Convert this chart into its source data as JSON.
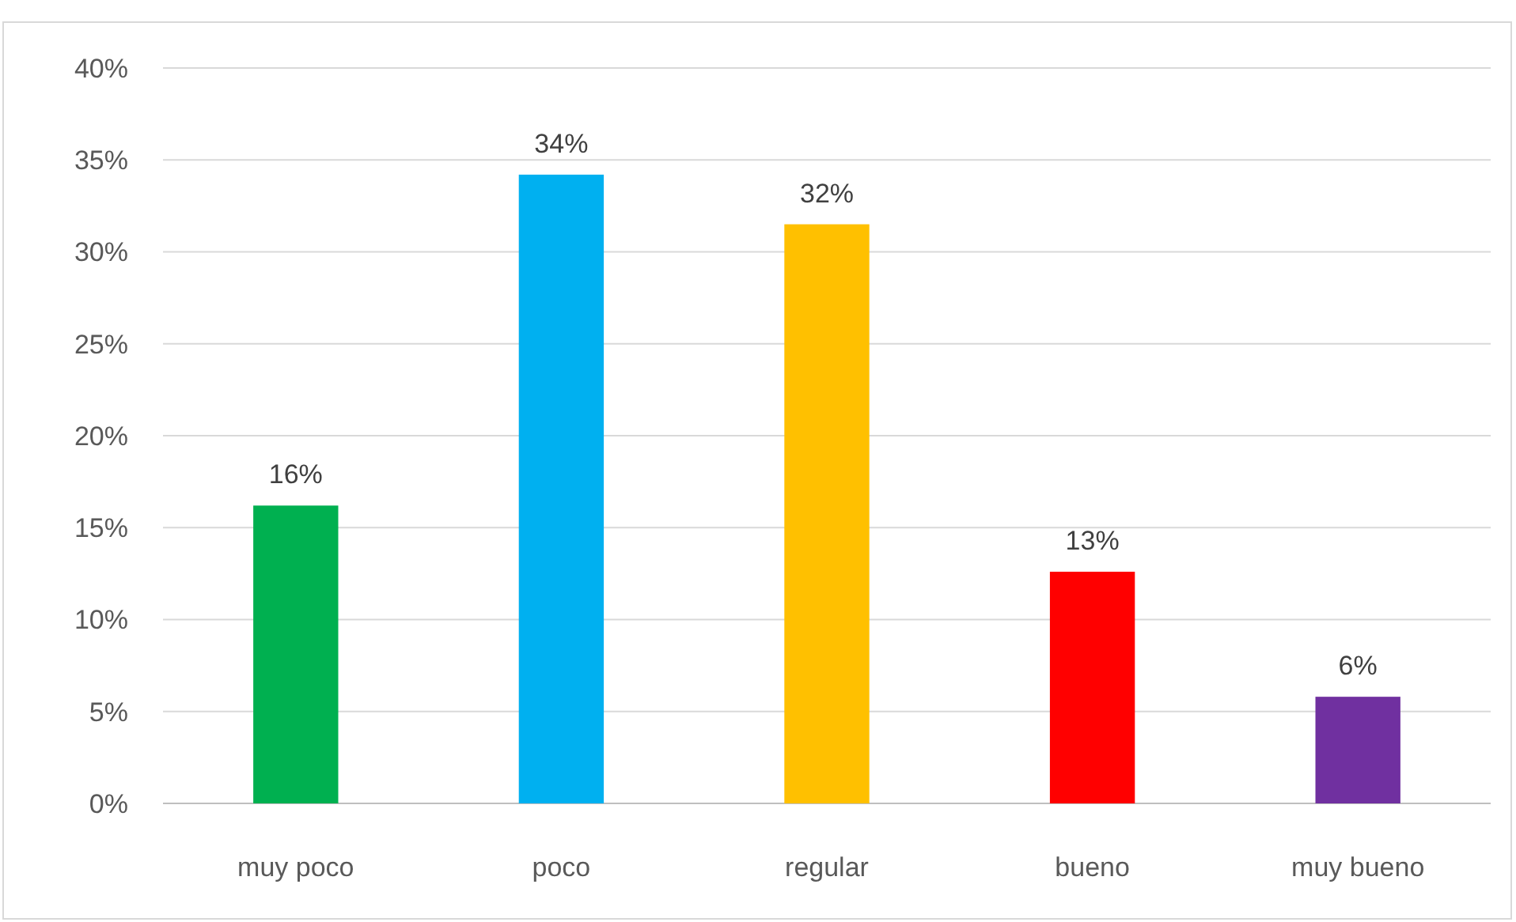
{
  "chart_data": {
    "type": "bar",
    "categories": [
      "muy poco",
      "poco",
      "regular",
      "bueno",
      "muy bueno"
    ],
    "values": [
      16.2,
      34.2,
      31.5,
      12.6,
      5.8
    ],
    "colors": [
      "#00b050",
      "#00b0f0",
      "#ffc000",
      "#ff0000",
      "#7030a0"
    ],
    "value_labels": [
      "16%",
      "34%",
      "32%",
      "13%",
      "6%"
    ],
    "ylim": [
      0,
      40
    ],
    "yticks": [
      {
        "value": 0,
        "label": "0%"
      },
      {
        "value": 5,
        "label": "5%"
      },
      {
        "value": 10,
        "label": "10%"
      },
      {
        "value": 15,
        "label": "15%"
      },
      {
        "value": 20,
        "label": "20%"
      },
      {
        "value": 25,
        "label": "25%"
      },
      {
        "value": 30,
        "label": "30%"
      },
      {
        "value": 35,
        "label": "35%"
      },
      {
        "value": 40,
        "label": "40%"
      }
    ],
    "grid": "y"
  }
}
